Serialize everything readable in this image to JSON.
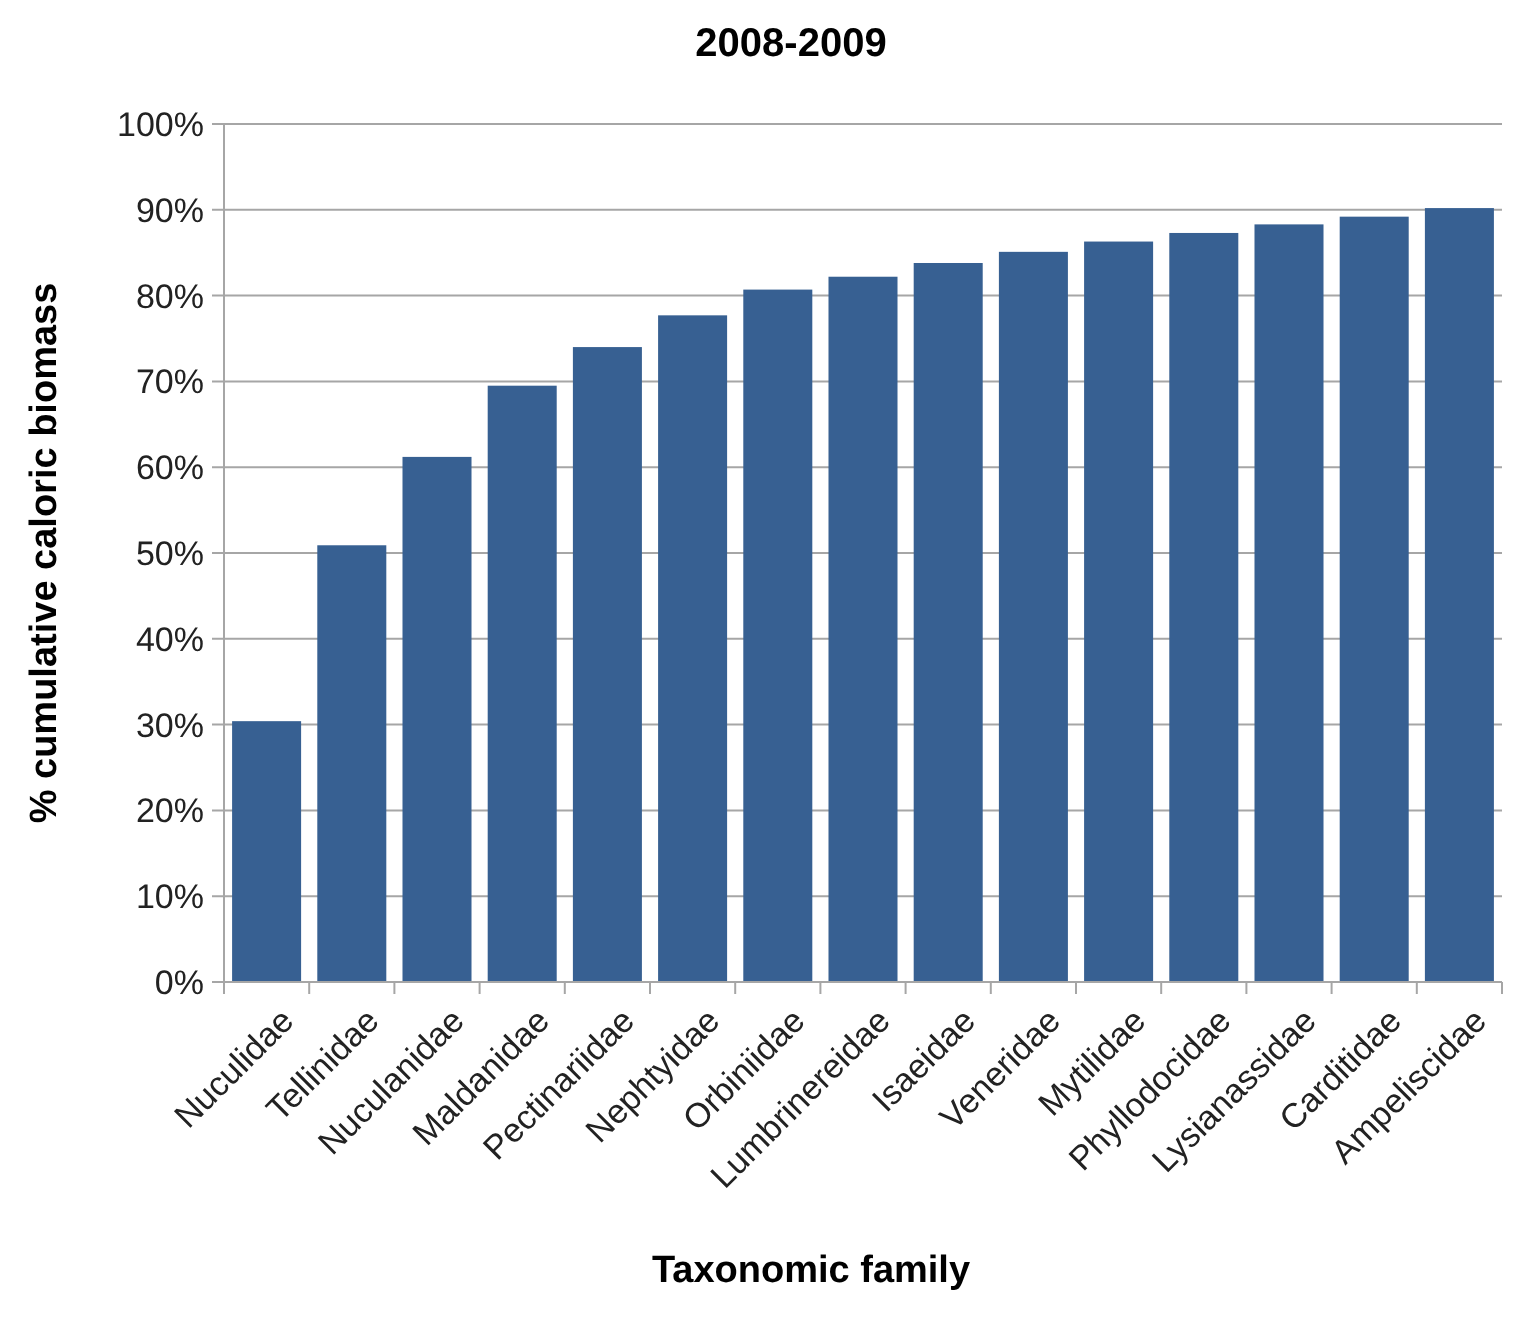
{
  "chart_data": {
    "type": "bar",
    "title": "2008-2009",
    "xlabel": "Taxonomic family",
    "ylabel": "% cumulative caloric biomass",
    "categories": [
      "Nuculidae",
      "Tellinidae",
      "Nuculanidae",
      "Maldanidae",
      "Pectinariidae",
      "Nephtyidae",
      "Orbiniidae",
      "Lumbrinereidae",
      "Isaeidae",
      "Veneridae",
      "Mytilidae",
      "Phyllodocidae",
      "Lysianassidae",
      "Carditidae",
      "Ampeliscidae"
    ],
    "values": [
      30.4,
      50.9,
      61.2,
      69.5,
      74.0,
      77.7,
      80.7,
      82.2,
      83.8,
      85.1,
      86.3,
      87.3,
      88.3,
      89.2,
      90.2
    ],
    "color": "#376092",
    "ylim": [
      0,
      100
    ],
    "yticks": [
      {
        "value": 0,
        "label": "0%"
      },
      {
        "value": 10,
        "label": "10%"
      },
      {
        "value": 20,
        "label": "20%"
      },
      {
        "value": 30,
        "label": "30%"
      },
      {
        "value": 40,
        "label": "40%"
      },
      {
        "value": 50,
        "label": "50%"
      },
      {
        "value": 60,
        "label": "60%"
      },
      {
        "value": 70,
        "label": "70%"
      },
      {
        "value": 80,
        "label": "80%"
      },
      {
        "value": 90,
        "label": "90%"
      },
      {
        "value": 100,
        "label": "100%"
      }
    ],
    "grid": "y"
  }
}
